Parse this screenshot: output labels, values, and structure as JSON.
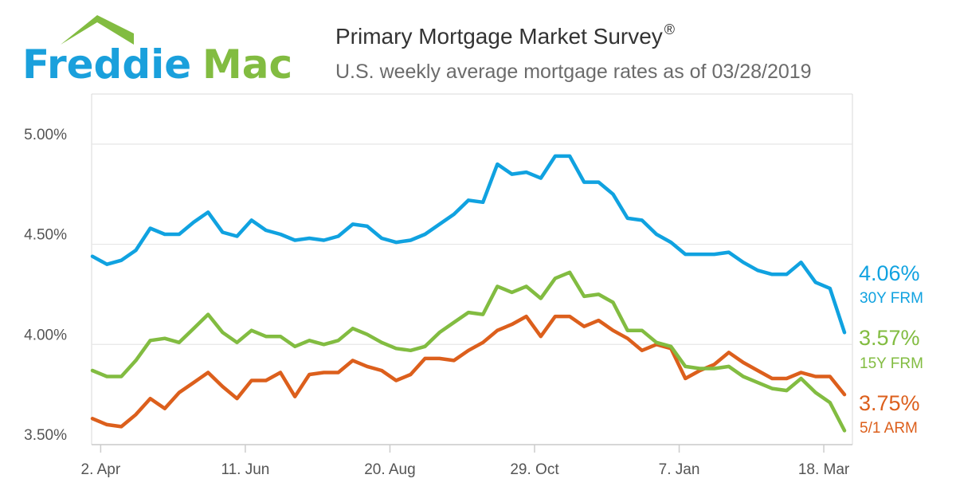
{
  "header": {
    "logo_text_a": "Freddie",
    "logo_text_b": "Mac",
    "title": "Primary Mortgage Market Survey",
    "title_mark": "®",
    "subtitle": "U.S. weekly average mortgage rates as of 03/28/2019"
  },
  "colors": {
    "logo_blue": "#1aa0dc",
    "logo_green": "#82bc41",
    "frm30": "#10a2e0",
    "frm15": "#82bc41",
    "arm51": "#dc5f1c",
    "grid": "#e6e6e6",
    "plot_border": "#d9d9d9"
  },
  "chart_data": {
    "type": "line",
    "title": "Primary Mortgage Market Survey",
    "subtitle": "U.S. weekly average mortgage rates as of 03/28/2019",
    "x_start": "2018-03-29",
    "x_step_days": 7,
    "x_ticks": [
      "2. Apr",
      "11. Jun",
      "20. Aug",
      "29. Oct",
      "7. Jan",
      "18. Mar"
    ],
    "x_tick_dates": [
      "2018-04-02",
      "2018-06-11",
      "2018-08-20",
      "2018-10-29",
      "2019-01-07",
      "2019-03-18"
    ],
    "y_ticks": [
      "3.50%",
      "4.00%",
      "4.50%",
      "5.00%"
    ],
    "y_tick_values": [
      3.5,
      4.0,
      4.5,
      5.0
    ],
    "ylim": [
      3.5,
      5.25
    ],
    "grid": true,
    "series": [
      {
        "name": "30Y FRM",
        "end_label": "4.06%",
        "color": "#10a2e0",
        "values": [
          4.44,
          4.4,
          4.42,
          4.47,
          4.58,
          4.55,
          4.55,
          4.61,
          4.66,
          4.56,
          4.54,
          4.62,
          4.57,
          4.55,
          4.52,
          4.53,
          4.52,
          4.54,
          4.6,
          4.59,
          4.53,
          4.51,
          4.52,
          4.55,
          4.6,
          4.65,
          4.72,
          4.71,
          4.9,
          4.85,
          4.86,
          4.83,
          4.94,
          4.94,
          4.81,
          4.81,
          4.75,
          4.63,
          4.62,
          4.55,
          4.51,
          4.45,
          4.45,
          4.45,
          4.46,
          4.41,
          4.37,
          4.35,
          4.35,
          4.41,
          4.31,
          4.28,
          4.06
        ]
      },
      {
        "name": "15Y FRM",
        "end_label": "3.57%",
        "color": "#82bc41",
        "values": [
          3.87,
          3.84,
          3.84,
          3.92,
          4.02,
          4.03,
          4.01,
          4.08,
          4.15,
          4.06,
          4.01,
          4.07,
          4.04,
          4.04,
          3.99,
          4.02,
          4.0,
          4.02,
          4.08,
          4.05,
          4.01,
          3.98,
          3.97,
          3.99,
          4.06,
          4.11,
          4.16,
          4.15,
          4.29,
          4.26,
          4.29,
          4.23,
          4.33,
          4.36,
          4.24,
          4.25,
          4.21,
          4.07,
          4.07,
          4.01,
          3.99,
          3.89,
          3.88,
          3.88,
          3.89,
          3.84,
          3.81,
          3.78,
          3.77,
          3.83,
          3.76,
          3.71,
          3.57
        ]
      },
      {
        "name": "5/1 ARM",
        "end_label": "3.75%",
        "color": "#dc5f1c",
        "values": [
          3.63,
          3.6,
          3.59,
          3.65,
          3.73,
          3.68,
          3.76,
          3.81,
          3.86,
          3.79,
          3.73,
          3.82,
          3.82,
          3.86,
          3.74,
          3.85,
          3.86,
          3.86,
          3.92,
          3.89,
          3.87,
          3.82,
          3.85,
          3.93,
          3.93,
          3.92,
          3.97,
          4.01,
          4.07,
          4.1,
          4.14,
          4.04,
          4.14,
          4.14,
          4.09,
          4.12,
          4.07,
          4.03,
          3.97,
          4.0,
          3.98,
          3.83,
          3.87,
          3.9,
          3.96,
          3.91,
          3.87,
          3.83,
          3.83,
          3.86,
          3.84,
          3.84,
          3.75
        ]
      }
    ]
  }
}
